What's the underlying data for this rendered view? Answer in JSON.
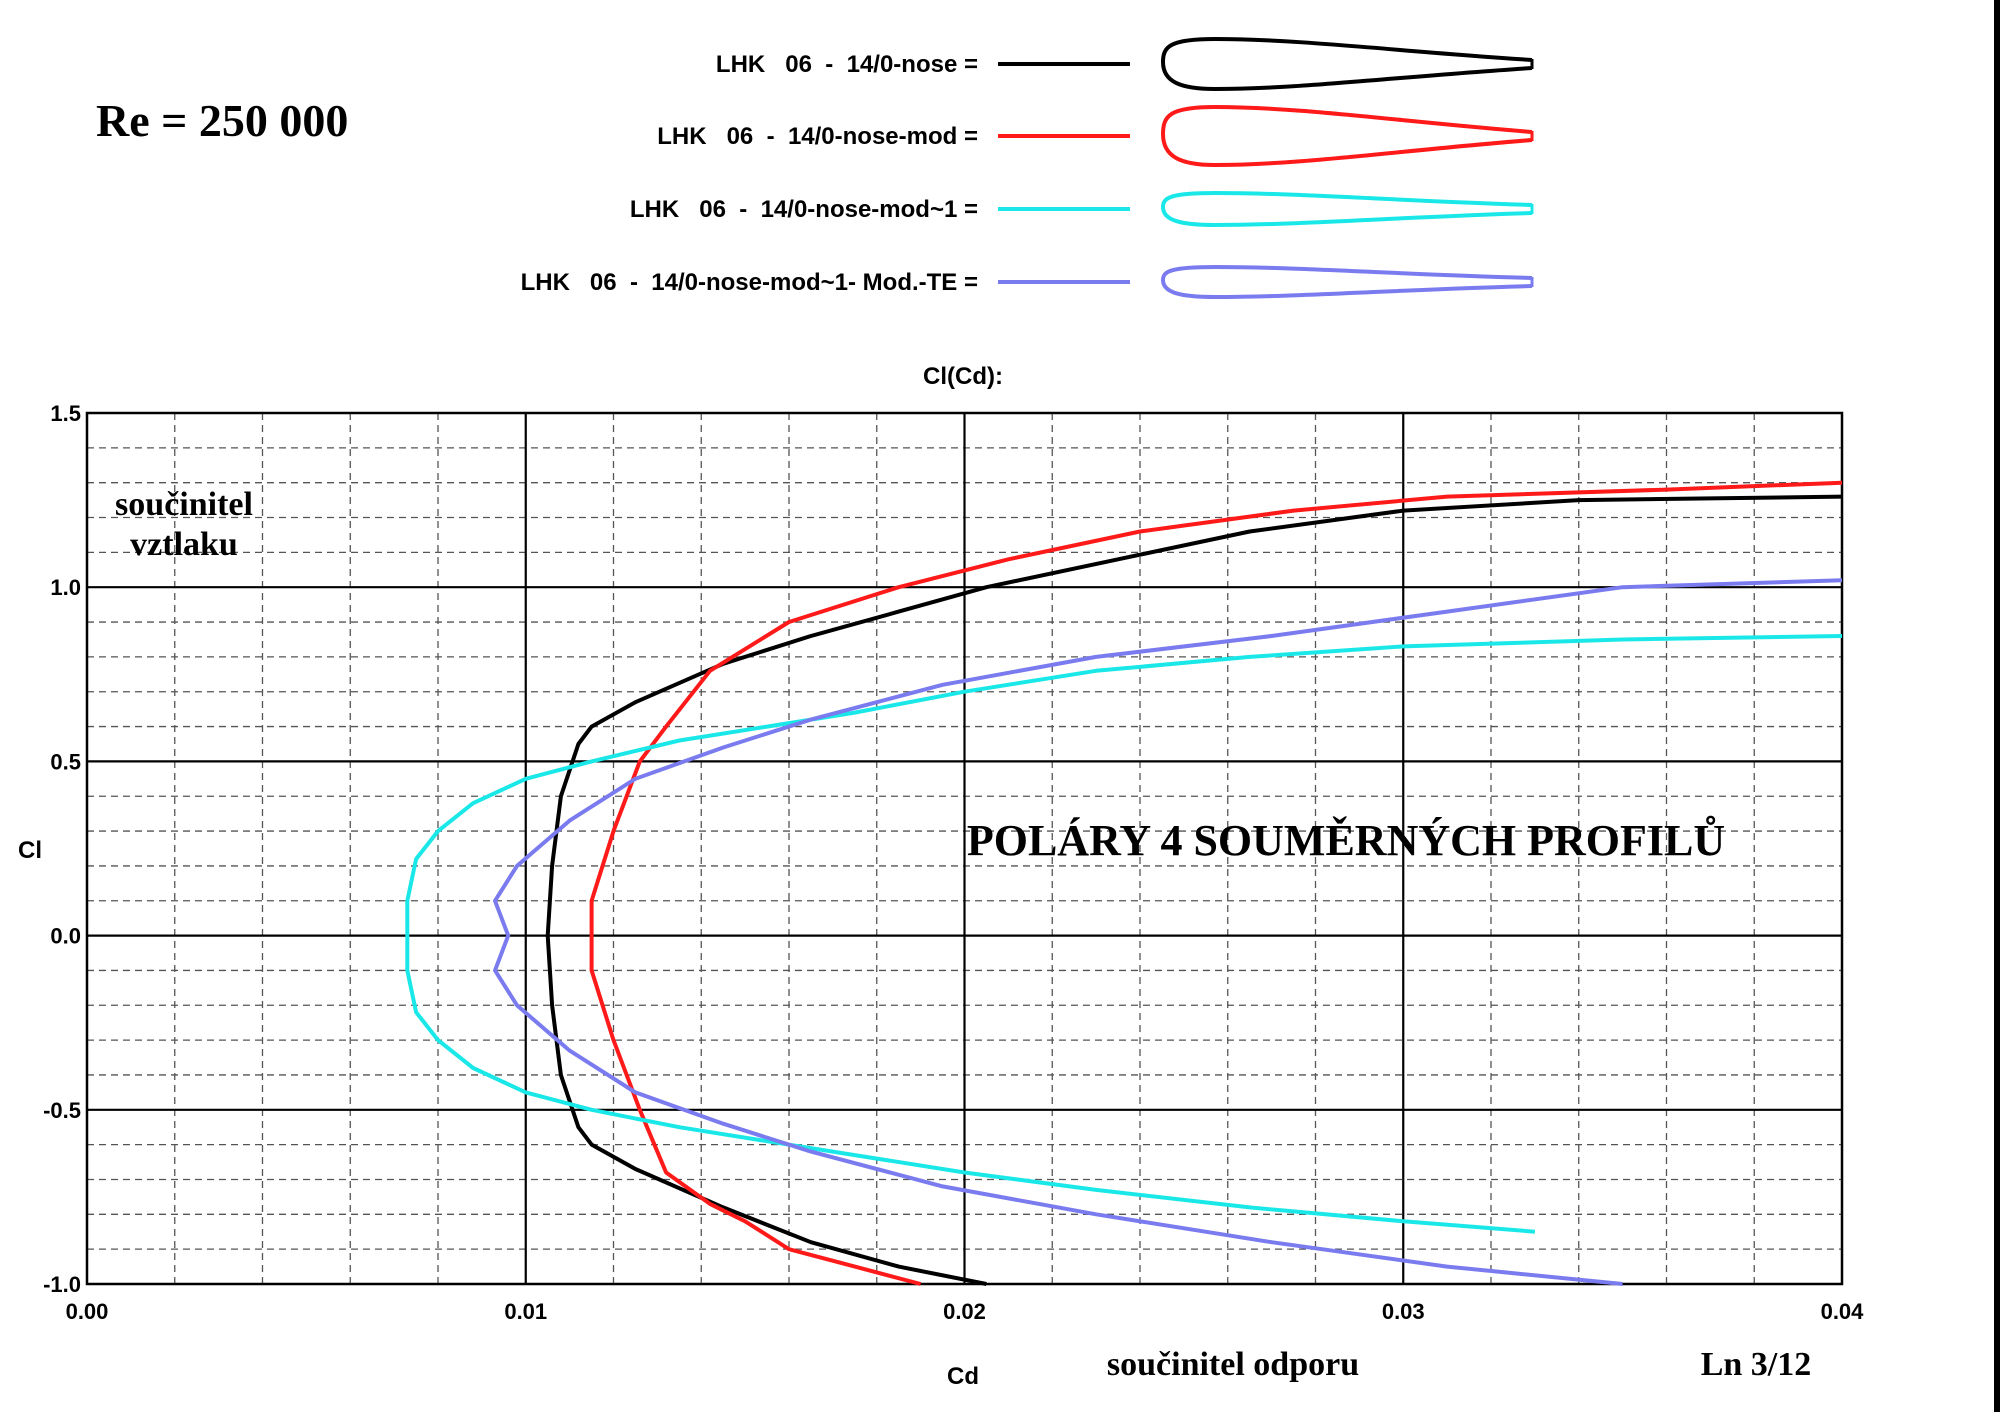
{
  "header": {
    "reynolds": "Re = 250 000"
  },
  "legend": [
    {
      "label": "LHK   06  -  14/0-nose =",
      "color": "#000000"
    },
    {
      "label": "LHK   06  -  14/0-nose-mod =",
      "color": "#ff1a1a"
    },
    {
      "label": "LHK   06  -  14/0-nose-mod~1 =",
      "color": "#1ae8e8"
    },
    {
      "label": "LHK   06  -  14/0-nose-mod~1- Mod.-TE =",
      "color": "#7b7bf0"
    }
  ],
  "chart_data": {
    "type": "line",
    "title": "Cl(Cd):",
    "xlabel": "Cd",
    "ylabel": "Cl",
    "xlim": [
      0.0,
      0.04
    ],
    "ylim": [
      -1.0,
      1.5
    ],
    "x_ticks": [
      "0.00",
      "0.01",
      "0.02",
      "0.03",
      "0.04"
    ],
    "y_ticks": [
      "1.5",
      "1.0",
      "0.5",
      "0.0",
      "-0.5",
      "-1.0"
    ],
    "grid": true,
    "annotations": {
      "ylabel_text": "součinitel\nvztlaku",
      "xlabel_text": "součinitel  odporu",
      "main_text": "POLÁRY  4  SOUMĚRNÝCH  PROFILŮ",
      "page_ref": "Ln 3/12"
    },
    "series": [
      {
        "name": "LHK   06  -  14/0-nose",
        "color": "#000000",
        "points": [
          [
            0.0205,
            -1.0
          ],
          [
            0.0185,
            -0.95
          ],
          [
            0.0165,
            -0.88
          ],
          [
            0.0145,
            -0.78
          ],
          [
            0.0125,
            -0.67
          ],
          [
            0.0115,
            -0.6
          ],
          [
            0.0112,
            -0.55
          ],
          [
            0.0108,
            -0.4
          ],
          [
            0.0106,
            -0.2
          ],
          [
            0.0105,
            0.0
          ],
          [
            0.0106,
            0.2
          ],
          [
            0.0108,
            0.4
          ],
          [
            0.0112,
            0.55
          ],
          [
            0.0115,
            0.6
          ],
          [
            0.0125,
            0.67
          ],
          [
            0.0145,
            0.78
          ],
          [
            0.0165,
            0.86
          ],
          [
            0.0185,
            0.93
          ],
          [
            0.0205,
            1.0
          ],
          [
            0.0235,
            1.08
          ],
          [
            0.0265,
            1.16
          ],
          [
            0.03,
            1.22
          ],
          [
            0.034,
            1.25
          ],
          [
            0.04,
            1.26
          ]
        ]
      },
      {
        "name": "LHK   06  -  14/0-nose-mod",
        "color": "#ff1a1a",
        "points": [
          [
            0.019,
            -1.0
          ],
          [
            0.0175,
            -0.95
          ],
          [
            0.016,
            -0.9
          ],
          [
            0.015,
            -0.82
          ],
          [
            0.0142,
            -0.77
          ],
          [
            0.0132,
            -0.68
          ],
          [
            0.0126,
            -0.5
          ],
          [
            0.012,
            -0.3
          ],
          [
            0.0115,
            -0.1
          ],
          [
            0.0115,
            0.0
          ],
          [
            0.0115,
            0.1
          ],
          [
            0.012,
            0.3
          ],
          [
            0.0126,
            0.5
          ],
          [
            0.0132,
            0.6
          ],
          [
            0.0142,
            0.76
          ],
          [
            0.016,
            0.9
          ],
          [
            0.0185,
            1.0
          ],
          [
            0.021,
            1.08
          ],
          [
            0.024,
            1.16
          ],
          [
            0.0275,
            1.22
          ],
          [
            0.031,
            1.26
          ],
          [
            0.036,
            1.28
          ],
          [
            0.04,
            1.3
          ]
        ]
      },
      {
        "name": "LHK   06  -  14/0-nose-mod~1",
        "color": "#1ae8e8",
        "points": [
          [
            0.033,
            -0.85
          ],
          [
            0.03,
            -0.82
          ],
          [
            0.0265,
            -0.78
          ],
          [
            0.023,
            -0.73
          ],
          [
            0.02,
            -0.68
          ],
          [
            0.0175,
            -0.63
          ],
          [
            0.0155,
            -0.59
          ],
          [
            0.0135,
            -0.55
          ],
          [
            0.0115,
            -0.5
          ],
          [
            0.01,
            -0.45
          ],
          [
            0.0088,
            -0.38
          ],
          [
            0.008,
            -0.3
          ],
          [
            0.0075,
            -0.22
          ],
          [
            0.0073,
            -0.1
          ],
          [
            0.0073,
            0.0
          ],
          [
            0.0073,
            0.1
          ],
          [
            0.0075,
            0.22
          ],
          [
            0.008,
            0.3
          ],
          [
            0.0088,
            0.38
          ],
          [
            0.01,
            0.45
          ],
          [
            0.0115,
            0.5
          ],
          [
            0.0135,
            0.56
          ],
          [
            0.0155,
            0.6
          ],
          [
            0.0175,
            0.64
          ],
          [
            0.02,
            0.7
          ],
          [
            0.023,
            0.76
          ],
          [
            0.0265,
            0.8
          ],
          [
            0.03,
            0.83
          ],
          [
            0.035,
            0.85
          ],
          [
            0.04,
            0.86
          ]
        ]
      },
      {
        "name": "LHK   06  -  14/0-nose-mod~1- Mod.-TE",
        "color": "#7b7bf0",
        "points": [
          [
            0.035,
            -1.0
          ],
          [
            0.031,
            -0.95
          ],
          [
            0.027,
            -0.88
          ],
          [
            0.023,
            -0.8
          ],
          [
            0.0195,
            -0.72
          ],
          [
            0.0165,
            -0.62
          ],
          [
            0.0145,
            -0.54
          ],
          [
            0.0125,
            -0.45
          ],
          [
            0.011,
            -0.33
          ],
          [
            0.0098,
            -0.2
          ],
          [
            0.0093,
            -0.1
          ],
          [
            0.0096,
            0.0
          ],
          [
            0.0093,
            0.1
          ],
          [
            0.0098,
            0.2
          ],
          [
            0.011,
            0.33
          ],
          [
            0.0125,
            0.45
          ],
          [
            0.0145,
            0.54
          ],
          [
            0.0165,
            0.62
          ],
          [
            0.0195,
            0.72
          ],
          [
            0.023,
            0.8
          ],
          [
            0.027,
            0.86
          ],
          [
            0.031,
            0.93
          ],
          [
            0.035,
            1.0
          ],
          [
            0.04,
            1.02
          ]
        ]
      }
    ]
  }
}
